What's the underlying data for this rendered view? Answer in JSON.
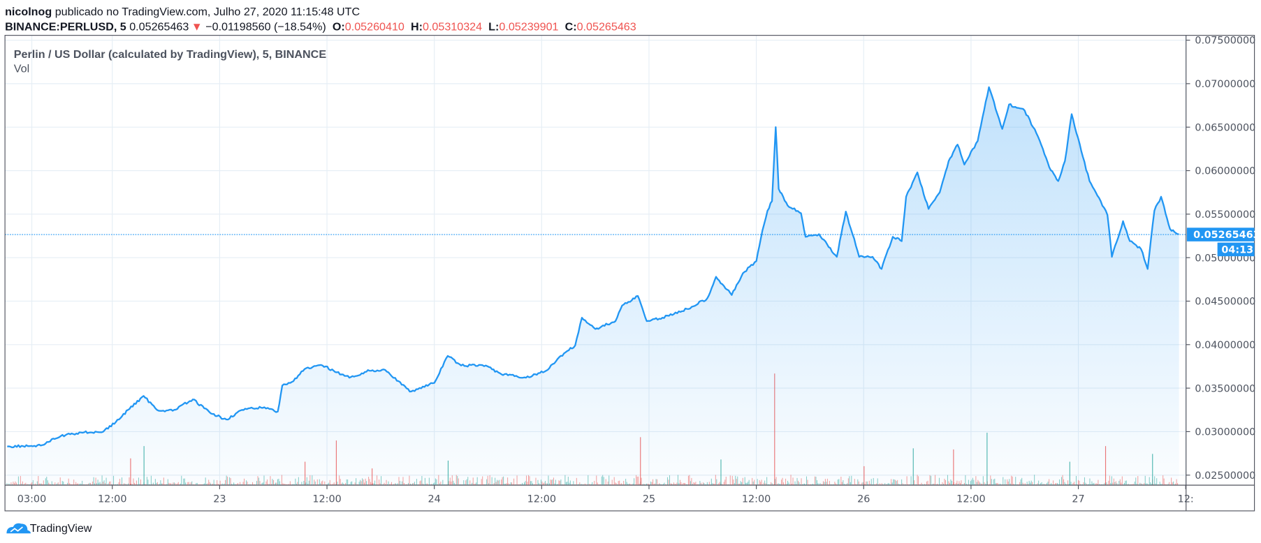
{
  "header": {
    "author": "nicolnog",
    "published": " publicado no TradingView.com, Julho 27, 2020 11:15:48 UTC",
    "symbol": "BINANCE:PERLUSD, 5",
    "last": " 0.05265463",
    "change_icon": "triangle-down-icon",
    "change": " −0.01198560 (−18.54%)",
    "o_label": "O:",
    "o_value": "0.05260410",
    "h_label": "H:",
    "h_value": "0.05310324",
    "l_label": "L:",
    "l_value": "0.05239901",
    "c_label": "C:",
    "c_value": "0.05265463"
  },
  "legend": {
    "title": "Perlin / US Dollar (calculated by TradingView), 5, BINANCE",
    "volume": "Vol"
  },
  "price_label": "0.05265463",
  "countdown": "04:13",
  "logo": "TradingView",
  "colors": {
    "line": "#2196f3",
    "up": "#26a69a",
    "down": "#ef5350",
    "accent": "#2196f3"
  },
  "chart_data": {
    "type": "area",
    "grid": true,
    "ylim": [
      0.0245,
      0.0755
    ],
    "y_ticks": [
      "0.07500000",
      "0.07000000",
      "0.06500000",
      "0.06000000",
      "0.05500000",
      "0.05000000",
      "0.04500000",
      "0.04000000",
      "0.03500000",
      "0.03000000",
      "0.02500000"
    ],
    "x_ticks": [
      {
        "t": "07-22 03:00",
        "label": "03:00"
      },
      {
        "t": "07-22 12:00",
        "label": "12:00"
      },
      {
        "t": "07-23 00:00",
        "label": "23"
      },
      {
        "t": "07-23 12:00",
        "label": "12:00"
      },
      {
        "t": "07-24 00:00",
        "label": "24"
      },
      {
        "t": "07-24 12:00",
        "label": "12:00"
      },
      {
        "t": "07-25 00:00",
        "label": "25"
      },
      {
        "t": "07-25 12:00",
        "label": "12:00"
      },
      {
        "t": "07-26 00:00",
        "label": "26"
      },
      {
        "t": "07-26 12:00",
        "label": "12:00"
      },
      {
        "t": "07-27 00:00",
        "label": "27"
      },
      {
        "t": "07-27 12:00",
        "label": "12:"
      }
    ],
    "last_value": 0.05265463,
    "series": [
      {
        "points": [
          [
            "07-22 00:15",
            0.0283
          ],
          [
            "07-22 04:00",
            0.0284
          ],
          [
            "07-22 06:15",
            0.0295
          ],
          [
            "07-22 08:30",
            0.0299
          ],
          [
            "07-22 11:00",
            0.03
          ],
          [
            "07-22 12:45",
            0.0314
          ],
          [
            "07-22 13:45",
            0.0325
          ],
          [
            "07-22 15:30",
            0.0341
          ],
          [
            "07-22 17:00",
            0.0325
          ],
          [
            "07-22 18:45",
            0.0324
          ],
          [
            "07-22 21:00",
            0.0337
          ],
          [
            "07-22 23:00",
            0.0321
          ],
          [
            "07-23 00:45",
            0.0314
          ],
          [
            "07-23 02:30",
            0.0325
          ],
          [
            "07-23 05:00",
            0.0328
          ],
          [
            "07-23 06:30",
            0.0323
          ],
          [
            "07-23 07:00",
            0.0353
          ],
          [
            "07-23 08:15",
            0.0358
          ],
          [
            "07-23 09:30",
            0.0372
          ],
          [
            "07-23 11:30",
            0.0376
          ],
          [
            "07-23 12:45",
            0.037
          ],
          [
            "07-23 14:30",
            0.0362
          ],
          [
            "07-23 16:45",
            0.037
          ],
          [
            "07-23 18:30",
            0.0371
          ],
          [
            "07-23 20:00",
            0.0358
          ],
          [
            "07-23 21:15",
            0.0346
          ],
          [
            "07-24 00:00",
            0.0356
          ],
          [
            "07-24 01:30",
            0.0387
          ],
          [
            "07-24 03:00",
            0.0376
          ],
          [
            "07-24 05:45",
            0.0376
          ],
          [
            "07-24 07:30",
            0.0366
          ],
          [
            "07-24 10:15",
            0.0362
          ],
          [
            "07-24 12:30",
            0.037
          ],
          [
            "07-24 14:30",
            0.039
          ],
          [
            "07-24 15:45",
            0.0399
          ],
          [
            "07-24 16:30",
            0.0431
          ],
          [
            "07-24 18:00",
            0.0418
          ],
          [
            "07-24 20:15",
            0.0427
          ],
          [
            "07-24 21:00",
            0.0445
          ],
          [
            "07-24 22:45",
            0.0456
          ],
          [
            "07-24 23:45",
            0.0427
          ],
          [
            "07-25 01:30",
            0.0431
          ],
          [
            "07-25 04:15",
            0.0441
          ],
          [
            "07-25 06:30",
            0.0453
          ],
          [
            "07-25 07:30",
            0.0478
          ],
          [
            "07-25 09:15",
            0.0457
          ],
          [
            "07-25 10:30",
            0.0482
          ],
          [
            "07-25 12:00",
            0.0496
          ],
          [
            "07-25 12:30",
            0.0522
          ],
          [
            "07-25 13:15",
            0.0554
          ],
          [
            "07-25 13:45",
            0.0565
          ],
          [
            "07-25 14:10",
            0.065
          ],
          [
            "07-25 14:30",
            0.0579
          ],
          [
            "07-25 15:30",
            0.056
          ],
          [
            "07-25 17:00",
            0.0551
          ],
          [
            "07-25 17:30",
            0.0524
          ],
          [
            "07-25 19:00",
            0.0527
          ],
          [
            "07-25 21:00",
            0.0501
          ],
          [
            "07-25 22:00",
            0.0553
          ],
          [
            "07-25 23:30",
            0.0501
          ],
          [
            "07-26 01:00",
            0.0501
          ],
          [
            "07-26 02:00",
            0.0487
          ],
          [
            "07-26 03:15",
            0.0524
          ],
          [
            "07-26 04:15",
            0.0519
          ],
          [
            "07-26 04:45",
            0.057
          ],
          [
            "07-26 06:00",
            0.0598
          ],
          [
            "07-26 07:15",
            0.0556
          ],
          [
            "07-26 08:30",
            0.0575
          ],
          [
            "07-26 09:30",
            0.0611
          ],
          [
            "07-26 10:30",
            0.063
          ],
          [
            "07-26 11:15",
            0.0607
          ],
          [
            "07-26 12:45",
            0.0634
          ],
          [
            "07-26 14:00",
            0.0696
          ],
          [
            "07-26 15:30",
            0.0648
          ],
          [
            "07-26 16:15",
            0.0676
          ],
          [
            "07-26 18:00",
            0.0669
          ],
          [
            "07-26 19:30",
            0.0639
          ],
          [
            "07-26 20:45",
            0.0604
          ],
          [
            "07-26 21:45",
            0.0588
          ],
          [
            "07-26 22:30",
            0.0611
          ],
          [
            "07-26 23:15",
            0.0665
          ],
          [
            "07-27 00:30",
            0.0616
          ],
          [
            "07-27 01:15",
            0.0588
          ],
          [
            "07-27 02:30",
            0.0565
          ],
          [
            "07-27 03:15",
            0.0549
          ],
          [
            "07-27 03:45",
            0.0501
          ],
          [
            "07-27 05:00",
            0.0542
          ],
          [
            "07-27 05:45",
            0.0519
          ],
          [
            "07-27 07:00",
            0.051
          ],
          [
            "07-27 07:45",
            0.0487
          ],
          [
            "07-27 08:30",
            0.0554
          ],
          [
            "07-27 09:15",
            0.057
          ],
          [
            "07-27 10:15",
            0.0533
          ],
          [
            "07-27 11:15",
            0.0527
          ]
        ]
      }
    ],
    "volume_spikes": [
      [
        "07-22 14:00",
        24,
        "down"
      ],
      [
        "07-22 15:30",
        35,
        "up"
      ],
      [
        "07-23 09:30",
        21,
        "down"
      ],
      [
        "07-23 13:00",
        40,
        "down"
      ],
      [
        "07-23 17:00",
        15,
        "down"
      ],
      [
        "07-24 01:30",
        22,
        "up"
      ],
      [
        "07-24 23:00",
        43,
        "down"
      ],
      [
        "07-25 08:00",
        23,
        "up"
      ],
      [
        "07-25 14:00",
        100,
        "down"
      ],
      [
        "07-26 00:00",
        17,
        "down"
      ],
      [
        "07-26 05:30",
        33,
        "up"
      ],
      [
        "07-26 10:00",
        32,
        "down"
      ],
      [
        "07-26 13:45",
        47,
        "up"
      ],
      [
        "07-26 23:00",
        21,
        "up"
      ],
      [
        "07-27 03:00",
        35,
        "down"
      ],
      [
        "07-27 08:15",
        28,
        "up"
      ]
    ]
  }
}
